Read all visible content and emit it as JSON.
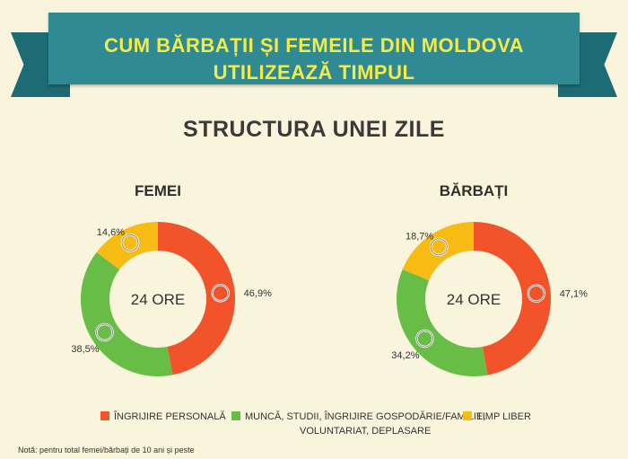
{
  "header": {
    "title_line1": "CUM BĂRBAȚII ȘI FEMEILE DIN MOLDOVA",
    "title_line2": "UTILIZEAZĂ TIMPUL"
  },
  "subtitle": "STRUCTURA UNEI ZILE",
  "colors": {
    "ingrijire": "#f2532a",
    "munca": "#67bd45",
    "timp_liber": "#f6bc14",
    "header_band": "#2f8a94",
    "header_text": "#f3eb48"
  },
  "chart_data": [
    {
      "type": "pie",
      "title": "FEMEI",
      "center_label": "24 ORE",
      "categories": [
        "Îngrijire personală",
        "Muncă, studii, îngrijire gospodărie/familie, voluntariat, deplasare",
        "Timp liber"
      ],
      "values": [
        46.9,
        38.5,
        14.6
      ],
      "value_labels": [
        "46,9%",
        "38,5%",
        "14,6%"
      ]
    },
    {
      "type": "pie",
      "title": "BĂRBAȚI",
      "center_label": "24 ORE",
      "categories": [
        "Îngrijire personală",
        "Muncă, studii, îngrijire gospodărie/familie, voluntariat, deplasare",
        "Timp liber"
      ],
      "values": [
        47.1,
        34.2,
        18.7
      ],
      "value_labels": [
        "47,1%",
        "34,2%",
        "18,7%"
      ]
    }
  ],
  "legend": {
    "items": [
      {
        "label_line1": "Îngrijire personală",
        "label_line2": ""
      },
      {
        "label_line1": "Muncă, studii, îngrijire gospodărie/familie,",
        "label_line2": "voluntariat, deplasare"
      },
      {
        "label_line1": "Timp liber",
        "label_line2": ""
      }
    ]
  },
  "note": "Notă: pentru total femei/bărbați de 10 ani și peste"
}
